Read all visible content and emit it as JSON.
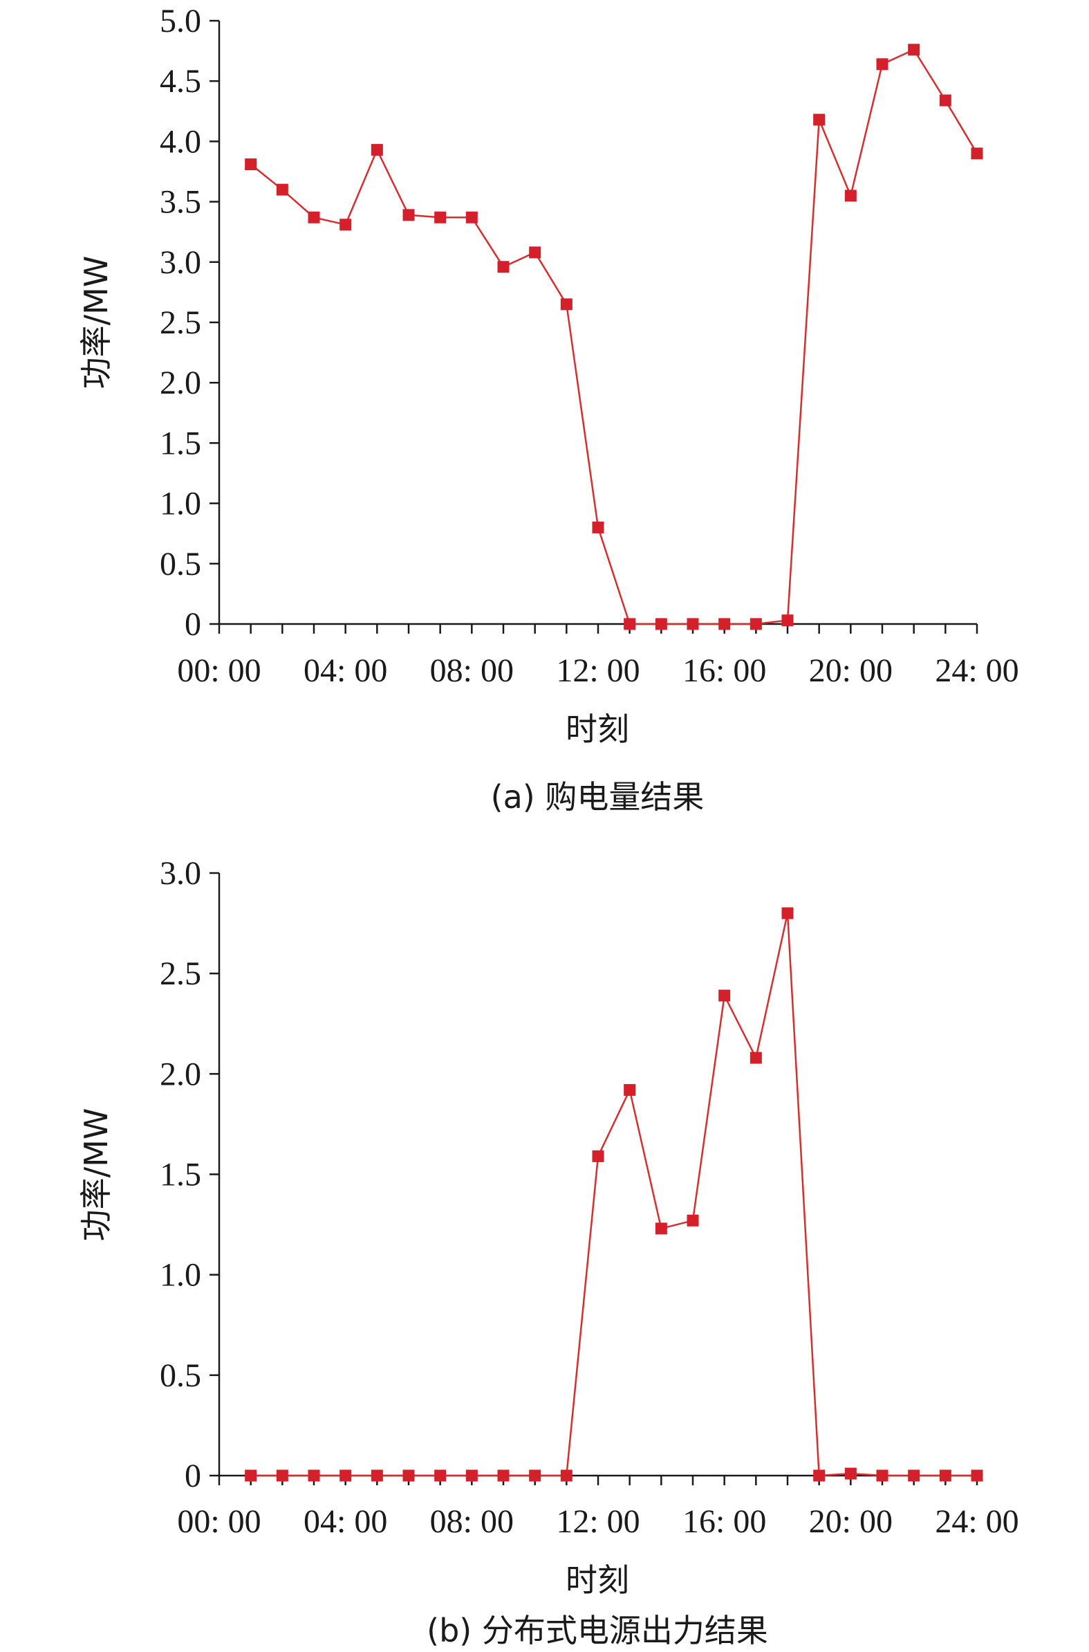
{
  "colors": {
    "series": "#d62e2e",
    "marker": "#d4202a",
    "axis": "#1a1a1a"
  },
  "chart_data": [
    {
      "type": "line",
      "caption": "(a) 购电量结果",
      "xlabel": "时刻",
      "ylabel": "功率/MW",
      "x_tick_labels": [
        "00: 00",
        "04: 00",
        "08: 00",
        "12: 00",
        "16: 00",
        "20: 00",
        "24: 00"
      ],
      "y_tick_labels": [
        "0",
        "0.5",
        "1.0",
        "1.5",
        "2.0",
        "2.5",
        "3.0",
        "3.5",
        "4.0",
        "4.5",
        "5.0"
      ],
      "ylim": [
        0,
        5
      ],
      "x_hours": [
        1,
        2,
        3,
        4,
        5,
        6,
        7,
        8,
        9,
        10,
        11,
        12,
        13,
        14,
        15,
        16,
        17,
        18,
        19,
        20,
        21,
        22,
        23,
        24
      ],
      "series": [
        {
          "values": [
            3.81,
            3.6,
            3.37,
            3.31,
            3.93,
            3.39,
            3.37,
            3.37,
            2.96,
            3.08,
            2.65,
            0.8,
            0,
            0,
            0,
            0,
            0,
            0.03,
            4.18,
            3.55,
            4.64,
            4.76,
            4.34,
            3.9
          ]
        }
      ]
    },
    {
      "type": "line",
      "caption": "(b) 分布式电源出力结果",
      "xlabel": "时刻",
      "ylabel": "功率/MW",
      "x_tick_labels": [
        "00: 00",
        "04: 00",
        "08: 00",
        "12: 00",
        "16: 00",
        "20: 00",
        "24: 00"
      ],
      "y_tick_labels": [
        "0",
        "0.5",
        "1.0",
        "1.5",
        "2.0",
        "2.5",
        "3.0"
      ],
      "ylim": [
        0,
        3
      ],
      "x_hours": [
        1,
        2,
        3,
        4,
        5,
        6,
        7,
        8,
        9,
        10,
        11,
        12,
        13,
        14,
        15,
        16,
        17,
        18,
        19,
        20,
        21,
        22,
        23,
        24
      ],
      "series": [
        {
          "values": [
            0,
            0,
            0,
            0,
            0,
            0,
            0,
            0,
            0,
            0,
            0,
            1.59,
            1.92,
            1.23,
            1.27,
            2.39,
            2.08,
            2.8,
            0,
            0.01,
            0,
            0,
            0,
            0
          ]
        }
      ]
    }
  ]
}
